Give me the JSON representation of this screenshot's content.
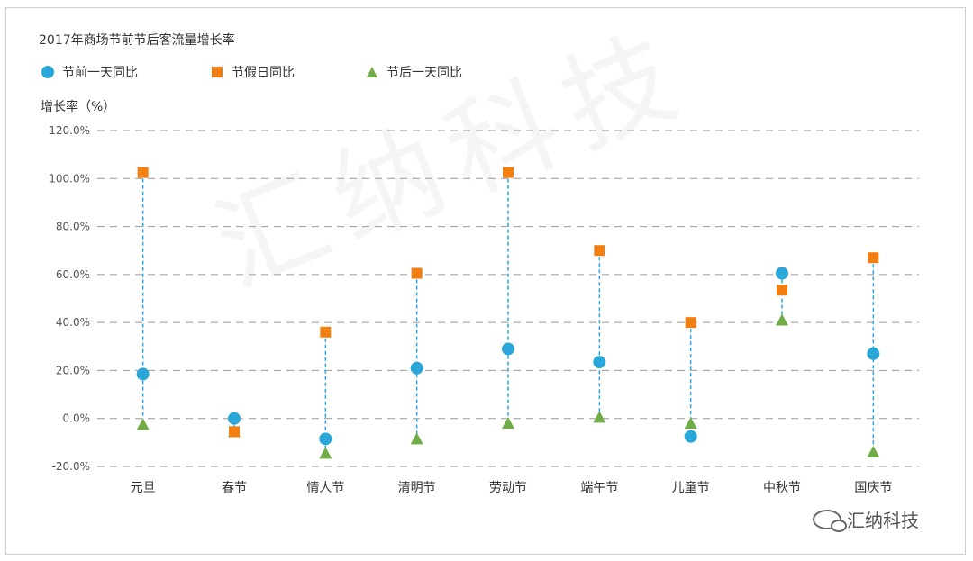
{
  "title": "2017年商场节前节后客流量增长率",
  "ylabel": "增长率（%）",
  "legend": [
    {
      "name": "节前一天同比",
      "color": "#2aa7d8",
      "shape": "circle"
    },
    {
      "name": "节假日同比",
      "color": "#f27f12",
      "shape": "square"
    },
    {
      "name": "节后一天同比",
      "color": "#71ad47",
      "shape": "triangle"
    }
  ],
  "watermark": "汇纳科技",
  "badge": "汇纳科技",
  "chart_data": {
    "type": "scatter",
    "categories": [
      "元旦",
      "春节",
      "情人节",
      "清明节",
      "劳动节",
      "端午节",
      "儿童节",
      "中秋节",
      "国庆节"
    ],
    "series": [
      {
        "name": "节前一天同比",
        "values": [
          18.5,
          0.0,
          -8.5,
          21.0,
          29.0,
          23.5,
          -7.5,
          60.5,
          27.0
        ]
      },
      {
        "name": "节假日同比",
        "values": [
          102.5,
          -5.5,
          36.0,
          60.5,
          102.5,
          70.0,
          40.0,
          53.5,
          67.0
        ]
      },
      {
        "name": "节后一天同比",
        "values": [
          -2.5,
          -5.5,
          -14.5,
          -8.5,
          -2.0,
          0.5,
          -2.0,
          41.0,
          -14.0
        ]
      }
    ],
    "yticks": [
      "120.0%",
      "100.0%",
      "80.0%",
      "60.0%",
      "40.0%",
      "20.0%",
      "0.0%",
      "-20.0%"
    ],
    "ylim": [
      -20,
      120
    ],
    "grid": true,
    "legend_position": "top-left"
  }
}
